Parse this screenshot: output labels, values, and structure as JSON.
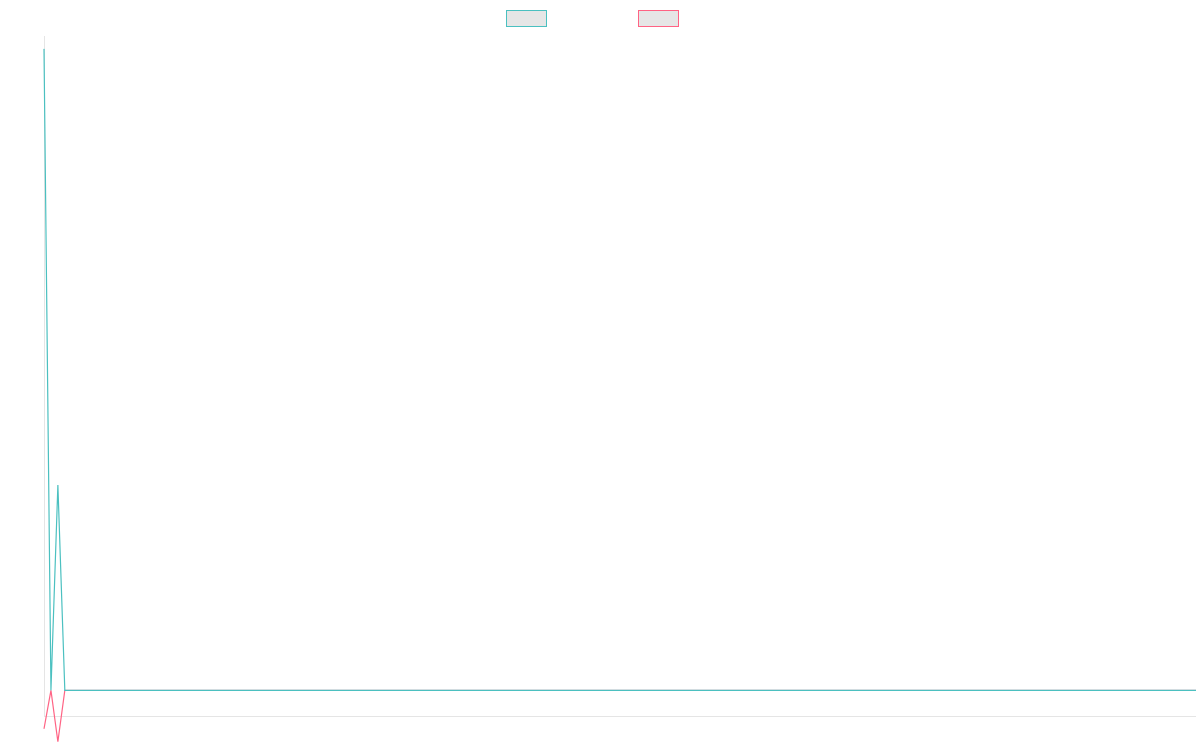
{
  "chart_data": {
    "type": "line",
    "title": "",
    "xlabel": "",
    "ylabel": "",
    "grid": false,
    "legend": {
      "position": "top-center",
      "swatch_fill": "#e6e6e6"
    },
    "x": [
      0,
      1,
      2,
      3,
      4,
      5,
      6,
      7,
      8,
      9,
      10,
      11,
      12,
      13,
      14,
      15,
      16,
      17,
      18,
      19,
      20,
      21,
      22,
      23,
      24,
      25,
      26,
      27,
      28,
      29,
      30,
      31,
      32,
      33,
      34,
      35,
      36,
      37,
      38,
      39,
      40,
      41,
      42,
      43,
      44,
      45,
      46,
      47,
      48,
      49,
      50,
      51,
      52,
      53,
      54,
      55,
      56,
      57,
      58,
      59,
      60,
      61,
      62,
      63,
      64,
      65,
      66,
      67,
      68,
      69,
      70,
      71,
      72,
      73,
      74,
      75,
      76,
      77,
      78,
      79,
      80,
      81,
      82,
      83,
      84,
      85,
      86,
      87,
      88,
      89,
      90,
      91,
      92,
      93,
      94,
      95,
      96,
      97,
      98,
      99,
      100,
      101,
      102,
      103,
      104,
      105,
      106,
      107,
      108,
      109,
      110,
      111,
      112,
      113,
      114,
      115,
      116,
      117,
      118,
      119,
      120,
      121,
      122,
      123,
      124,
      125,
      126,
      127,
      128,
      129,
      130,
      131,
      132,
      133,
      134,
      135,
      136,
      137,
      138,
      139,
      140,
      141,
      142,
      143,
      144,
      145,
      146,
      147,
      148,
      149,
      150,
      151,
      152,
      153,
      154,
      155,
      156,
      157,
      158,
      159,
      160,
      161,
      162,
      163,
      164,
      165,
      166
    ],
    "xlim": [
      0,
      166
    ],
    "ylim": [
      -2,
      51
    ],
    "series": [
      {
        "color": "#4bc0c0",
        "values": [
          50,
          0,
          16,
          0,
          0,
          0,
          0,
          0,
          0,
          0,
          0,
          0,
          0,
          0,
          0,
          0,
          0,
          0,
          0,
          0,
          0,
          0,
          0,
          0,
          0,
          0,
          0,
          0,
          0,
          0,
          0,
          0,
          0,
          0,
          0,
          0,
          0,
          0,
          0,
          0,
          0,
          0,
          0,
          0,
          0,
          0,
          0,
          0,
          0,
          0,
          0,
          0,
          0,
          0,
          0,
          0,
          0,
          0,
          0,
          0,
          0,
          0,
          0,
          0,
          0,
          0,
          0,
          0,
          0,
          0,
          0,
          0,
          0,
          0,
          0,
          0,
          0,
          0,
          0,
          0,
          0,
          0,
          0,
          0,
          0,
          0,
          0,
          0,
          0,
          0,
          0,
          0,
          0,
          0,
          0,
          0,
          0,
          0,
          0,
          0,
          0,
          0,
          0,
          0,
          0,
          0,
          0,
          0,
          0,
          0,
          0,
          0,
          0,
          0,
          0,
          0,
          0,
          0,
          0,
          0,
          0,
          0,
          0,
          0,
          0,
          0,
          0,
          0,
          0,
          0,
          0,
          0,
          0,
          0,
          0,
          0,
          0,
          0,
          0,
          0,
          0,
          0,
          0,
          0,
          0,
          0,
          0,
          0,
          0,
          0,
          0,
          0,
          0,
          0,
          0,
          0,
          0,
          0,
          0,
          0,
          0,
          0,
          0,
          0,
          0,
          0,
          0
        ]
      },
      {
        "color": "#ff6384",
        "values": [
          -3,
          0,
          -4,
          0,
          0,
          0,
          0,
          0,
          0,
          0,
          0,
          0,
          0,
          0,
          0,
          0,
          0,
          0,
          0,
          0,
          0,
          0,
          0,
          0,
          0,
          0,
          0,
          0,
          0,
          0,
          0,
          0,
          0,
          0,
          0,
          0,
          0,
          0,
          0,
          0,
          0,
          0,
          0,
          0,
          0,
          0,
          0,
          0,
          0,
          0,
          0,
          0,
          0,
          0,
          0,
          0,
          0,
          0,
          0,
          0,
          0,
          0,
          0,
          0,
          0,
          0,
          0,
          0,
          0,
          0,
          0,
          0,
          0,
          0,
          0,
          0,
          0,
          0,
          0,
          0,
          0,
          0,
          0,
          0,
          0,
          0,
          0,
          0,
          0,
          0,
          0,
          0,
          0,
          0,
          0,
          0,
          0,
          0,
          0,
          0,
          0,
          0,
          0,
          0,
          0,
          0,
          0,
          0,
          0,
          0,
          0,
          0,
          0,
          0,
          0,
          0,
          0,
          0,
          0,
          0,
          0,
          0,
          0,
          0,
          0,
          0,
          0,
          0,
          0,
          0,
          0,
          0,
          0,
          0,
          0,
          0,
          0,
          0,
          0,
          0,
          0,
          0,
          0,
          0,
          0,
          0,
          0,
          0,
          0,
          0,
          0,
          0,
          0,
          0,
          0,
          0,
          0,
          0,
          0,
          0,
          0,
          0,
          0,
          0,
          0,
          0,
          0
        ]
      }
    ]
  }
}
